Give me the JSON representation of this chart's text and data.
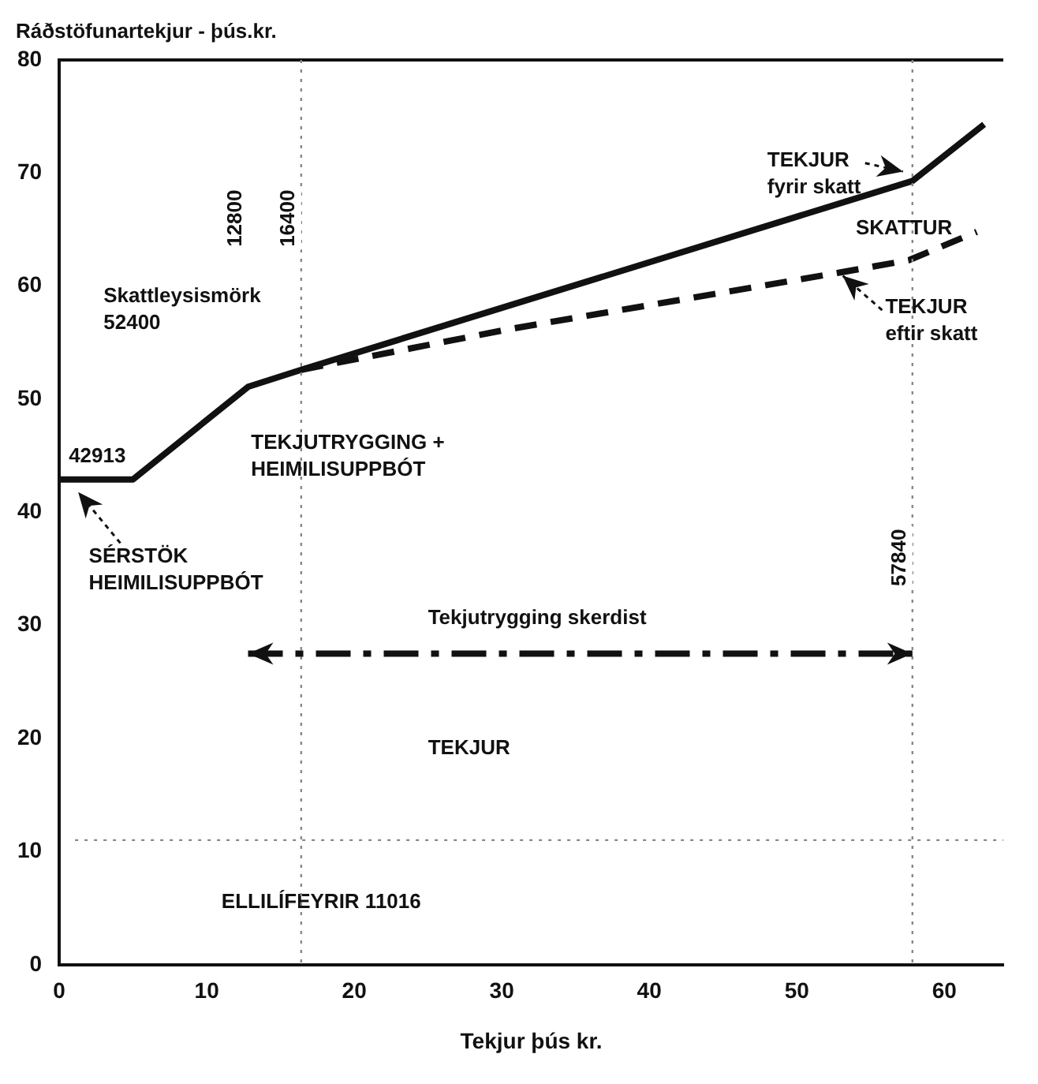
{
  "chart_data": {
    "type": "line",
    "ylabel": "Ráðstöfunartekjur - þús.kr.",
    "xlabel": "Tekjur þús kr.",
    "xlim": [
      0,
      64
    ],
    "xticks": [
      0,
      10,
      20,
      30,
      40,
      50,
      60
    ],
    "ylim": [
      0,
      80
    ],
    "yticks": [
      0,
      10,
      20,
      30,
      40,
      50,
      60,
      70,
      80
    ],
    "grid": false,
    "legend": false,
    "marker": "none",
    "series": [
      {
        "color": "#111111",
        "line_style": "solid",
        "x": [
          0,
          5,
          12.8,
          16.4,
          57.84,
          62.7
        ],
        "values": [
          42.913,
          42.913,
          51.1,
          52.6,
          69.3,
          74.3
        ]
      },
      {
        "color": "#111111",
        "line_style": "dashed",
        "x": [
          16.4,
          30.5,
          52.9,
          57.6,
          62.2
        ],
        "values": [
          52.6,
          56.2,
          61.2,
          62.3,
          64.8
        ]
      }
    ],
    "ref_lines": [
      {
        "axis": "y",
        "value": 11.016,
        "label": "ELLILÍFEYRIR 11016",
        "color": "#888888",
        "line_style": "dotted"
      },
      {
        "axis": "x",
        "value": 16.4,
        "label": "16400",
        "color": "#888888",
        "line_style": "dotted"
      },
      {
        "axis": "x",
        "value": 57.84,
        "label": "57840",
        "color": "#888888",
        "line_style": "dotted"
      }
    ],
    "annotations": [
      "Skattleysismörk\n52400",
      "TEKJUTRYGGING +\nHEIMILISUPPBÓT",
      "SÉRSTÖK\nHEIMILISUPPBÓT",
      "Tekjutrygging skerdist",
      "TEKJUR",
      "SKATTUR",
      "TEKJUR\nfyrir skatt",
      "TEKJUR\neftir skatt",
      "12800",
      {
        "text": "42913",
        "x": 0,
        "y": 42.913
      }
    ]
  }
}
